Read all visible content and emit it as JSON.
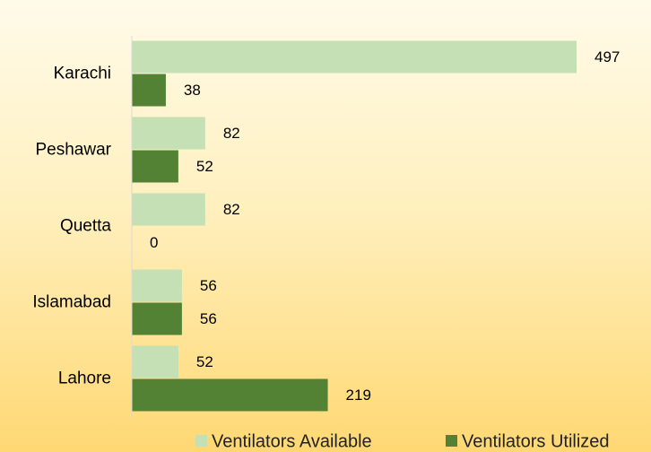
{
  "chart_data": {
    "type": "bar",
    "orientation": "horizontal",
    "categories": [
      "Karachi",
      "Peshawar",
      "Quetta",
      "Islamabad",
      "Lahore"
    ],
    "series": [
      {
        "name": "Ventilators Available",
        "color": "#c5e0b4",
        "values": [
          497,
          82,
          82,
          56,
          52
        ]
      },
      {
        "name": "Ventilators Utilized",
        "color": "#548235",
        "values": [
          38,
          52,
          0,
          56,
          219
        ]
      }
    ],
    "legend": "bottom"
  }
}
